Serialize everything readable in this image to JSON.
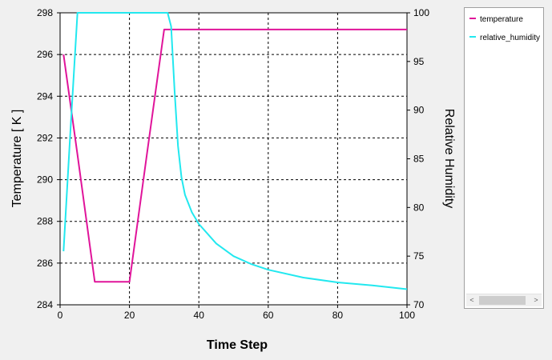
{
  "chart_data": {
    "type": "line",
    "xlabel": "Time Step",
    "ylabel": "Temperature [ K ]",
    "y2label": "Relative Humidity",
    "xlim": [
      0,
      100
    ],
    "ylim": [
      284,
      298
    ],
    "y2lim": [
      70,
      100
    ],
    "xticks": [
      "0",
      "20",
      "40",
      "60",
      "80",
      "100"
    ],
    "yticks": [
      "284",
      "286",
      "288",
      "290",
      "292",
      "294",
      "296",
      "298"
    ],
    "y2ticks": [
      "70",
      "75",
      "80",
      "85",
      "90",
      "95",
      "100"
    ],
    "grid": true,
    "legend_position": "right",
    "series": [
      {
        "name": "temperature",
        "axis": "left",
        "color": "#e0149a",
        "x": [
          1,
          5,
          10,
          15,
          20,
          25,
          30,
          31,
          100
        ],
        "y": [
          296,
          291.2,
          285.1,
          285.1,
          285.1,
          291.2,
          297.2,
          297.2,
          297.2
        ]
      },
      {
        "name": "relative_humidity",
        "axis": "right",
        "color": "#22e8ef",
        "x": [
          1,
          3,
          5,
          10,
          20,
          31,
          32,
          33,
          34,
          35,
          36,
          38,
          40,
          45,
          50,
          55,
          60,
          70,
          80,
          90,
          100
        ],
        "y": [
          75.5,
          88,
          100,
          100,
          100,
          100,
          98.6,
          92,
          86.3,
          83.1,
          81.3,
          79.5,
          78.3,
          76.3,
          75,
          74.2,
          73.6,
          72.8,
          72.3,
          72,
          71.6
        ]
      }
    ]
  },
  "legend": {
    "items": [
      {
        "label": "temperature",
        "color": "#e0149a"
      },
      {
        "label": "relative_humidity",
        "color": "#22e8ef"
      }
    ],
    "scroll_left": "<",
    "scroll_right": ">"
  }
}
